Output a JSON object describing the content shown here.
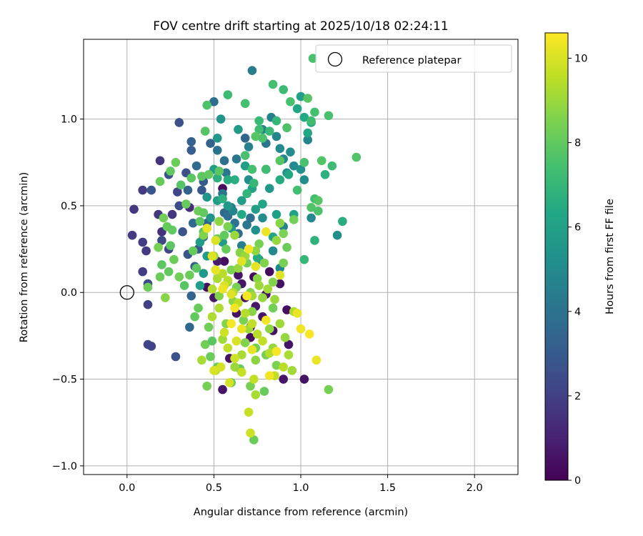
{
  "chart_data": {
    "type": "scatter",
    "title": "FOV centre drift starting at 2025/10/18 02:24:11",
    "xlabel": "Angular distance from reference (arcmin)",
    "ylabel": "Rotation from reference (arcmin)",
    "xlim": [
      -0.25,
      2.25
    ],
    "ylim": [
      -1.05,
      1.46
    ],
    "xticks": [
      0.0,
      0.5,
      1.0,
      1.5,
      2.0
    ],
    "xtick_labels": [
      "0.0",
      "0.5",
      "1.0",
      "1.5",
      "2.0"
    ],
    "yticks": [
      -1.0,
      -0.5,
      0.0,
      0.5,
      1.0
    ],
    "ytick_labels": [
      "−1.0",
      "−0.5",
      "0.0",
      "0.5",
      "1.0"
    ],
    "grid": true,
    "legend": {
      "position": "top-right",
      "entries": [
        "Reference platepar"
      ]
    },
    "reference_point": {
      "x": 0.0,
      "y": 0.0,
      "label": "Reference platepar"
    },
    "colorbar": {
      "label": "Hours from first FF file",
      "range": [
        0,
        10.6
      ],
      "ticks": [
        0,
        2,
        4,
        6,
        8,
        10
      ],
      "tick_labels": [
        "0",
        "2",
        "4",
        "6",
        "8",
        "10"
      ],
      "colormap": "viridis"
    },
    "points": [
      [
        0.55,
        0.6,
        0.3
      ],
      [
        0.73,
        0.09,
        0.3
      ],
      [
        0.56,
        0.18,
        0.4
      ],
      [
        0.82,
        0.12,
        0.3
      ],
      [
        0.92,
        -0.1,
        0.4
      ],
      [
        1.02,
        -0.5,
        0.5
      ],
      [
        0.55,
        -0.56,
        0.6
      ],
      [
        0.63,
        -0.12,
        0.5
      ],
      [
        0.5,
        -0.03,
        0.7
      ],
      [
        0.66,
        0.05,
        0.6
      ],
      [
        0.8,
        -0.01,
        0.5
      ],
      [
        0.46,
        0.03,
        0.4
      ],
      [
        0.71,
        -0.2,
        0.6
      ],
      [
        0.74,
        -0.08,
        0.7
      ],
      [
        0.93,
        -0.3,
        0.6
      ],
      [
        0.84,
        -0.22,
        0.5
      ],
      [
        0.78,
        -0.14,
        0.6
      ],
      [
        0.68,
        -0.03,
        0.5
      ],
      [
        0.9,
        -0.5,
        0.6
      ],
      [
        0.59,
        -0.38,
        0.5
      ],
      [
        0.52,
        0.18,
        0.8
      ],
      [
        0.88,
        0.05,
        0.5
      ],
      [
        0.64,
        0.1,
        0.6
      ],
      [
        0.71,
        -0.26,
        0.4
      ],
      [
        0.36,
        0.49,
        1.4
      ],
      [
        0.09,
        0.59,
        1.8
      ],
      [
        0.04,
        0.48,
        1.7
      ],
      [
        0.03,
        0.33,
        1.8
      ],
      [
        0.09,
        0.29,
        1.9
      ],
      [
        0.11,
        0.24,
        1.8
      ],
      [
        0.09,
        0.12,
        1.9
      ],
      [
        0.19,
        0.76,
        1.6
      ],
      [
        0.26,
        0.45,
        1.7
      ],
      [
        0.2,
        0.35,
        1.5
      ],
      [
        0.18,
        0.45,
        1.7
      ],
      [
        0.12,
        -0.07,
        2.0
      ],
      [
        0.12,
        -0.3,
        2.2
      ],
      [
        0.14,
        -0.31,
        2.1
      ],
      [
        0.28,
        -0.37,
        2.6
      ],
      [
        0.12,
        0.05,
        2.3
      ],
      [
        0.29,
        0.58,
        2.2
      ],
      [
        0.24,
        0.25,
        2.2
      ],
      [
        0.34,
        0.69,
        2.5
      ],
      [
        0.3,
        0.98,
        2.6
      ],
      [
        0.32,
        0.35,
        2.7
      ],
      [
        0.35,
        0.22,
        2.8
      ],
      [
        0.24,
        0.68,
        2.7
      ],
      [
        0.14,
        0.59,
        2.8
      ],
      [
        0.3,
        0.5,
        2.4
      ],
      [
        0.2,
        0.3,
        2.3
      ],
      [
        0.37,
        0.82,
        3.1
      ],
      [
        0.37,
        0.87,
        3.3
      ],
      [
        0.44,
        0.64,
        3.0
      ],
      [
        0.43,
        0.59,
        2.9
      ],
      [
        0.46,
        0.4,
        3.1
      ],
      [
        0.35,
        0.59,
        3.3
      ],
      [
        0.36,
        -0.2,
        3.6
      ],
      [
        0.37,
        -0.02,
        3.4
      ],
      [
        0.39,
        0.15,
        3.2
      ],
      [
        0.41,
        0.25,
        3.0
      ],
      [
        0.38,
        0.4,
        3.6
      ],
      [
        0.44,
        0.32,
        3.3
      ],
      [
        0.4,
        0.73,
        3.7
      ],
      [
        0.48,
        0.86,
        3.3
      ],
      [
        0.5,
        1.1,
        3.8
      ],
      [
        0.52,
        0.82,
        4.0
      ],
      [
        0.55,
        0.57,
        4.2
      ],
      [
        0.56,
        0.46,
        3.6
      ],
      [
        0.57,
        0.69,
        4.1
      ],
      [
        0.58,
        0.44,
        3.8
      ],
      [
        0.6,
        0.49,
        4.4
      ],
      [
        0.62,
        0.4,
        4.0
      ],
      [
        0.64,
        0.34,
        3.7
      ],
      [
        0.66,
        0.27,
        4.5
      ],
      [
        0.68,
        0.89,
        3.5
      ],
      [
        0.69,
        0.39,
        4.2
      ],
      [
        0.71,
        0.43,
        3.9
      ],
      [
        0.61,
        0.47,
        4.8
      ],
      [
        0.56,
        0.76,
        3.9
      ],
      [
        0.63,
        0.77,
        4.2
      ],
      [
        0.7,
        0.84,
        4.6
      ],
      [
        0.72,
        1.28,
        4.4
      ],
      [
        0.78,
        0.94,
        4.8
      ],
      [
        0.8,
        0.86,
        4.1
      ],
      [
        0.83,
        1.01,
        4.6
      ],
      [
        0.86,
        0.9,
        4.8
      ],
      [
        0.88,
        0.83,
        5.0
      ],
      [
        0.9,
        0.77,
        4.9
      ],
      [
        0.92,
        0.69,
        5.2
      ],
      [
        0.94,
        0.81,
        5.1
      ],
      [
        0.96,
        0.73,
        5.0
      ],
      [
        1.0,
        0.71,
        5.3
      ],
      [
        1.02,
        0.65,
        5.1
      ],
      [
        1.04,
        0.88,
        4.8
      ],
      [
        1.06,
        0.43,
        5.0
      ],
      [
        1.21,
        0.33,
        5.2
      ],
      [
        0.9,
        0.38,
        4.7
      ],
      [
        0.88,
        0.14,
        4.8
      ],
      [
        0.84,
        0.24,
        5.0
      ],
      [
        0.76,
        0.19,
        4.9
      ],
      [
        0.74,
        0.36,
        5.3
      ],
      [
        0.78,
        0.43,
        5.1
      ],
      [
        0.8,
        0.71,
        5.4
      ],
      [
        0.82,
        0.6,
        5.6
      ],
      [
        0.7,
        0.65,
        5.2
      ],
      [
        0.66,
        0.53,
        5.8
      ],
      [
        0.6,
        0.37,
        5.4
      ],
      [
        0.58,
        0.5,
        5.6
      ],
      [
        0.55,
        0.29,
        5.7
      ],
      [
        0.52,
        0.53,
        5.9
      ],
      [
        0.48,
        0.43,
        5.4
      ],
      [
        0.46,
        0.21,
        5.8
      ],
      [
        0.44,
        0.11,
        5.6
      ],
      [
        0.42,
        0.04,
        6.0
      ],
      [
        0.42,
        0.29,
        5.8
      ],
      [
        0.46,
        0.55,
        5.5
      ],
      [
        0.5,
        0.71,
        5.9
      ],
      [
        0.52,
        0.89,
        5.6
      ],
      [
        0.54,
        1.0,
        5.5
      ],
      [
        0.64,
        0.94,
        5.7
      ],
      [
        0.68,
        0.73,
        5.9
      ],
      [
        0.72,
        0.6,
        6.1
      ],
      [
        0.74,
        0.48,
        5.9
      ],
      [
        0.78,
        0.51,
        6.2
      ],
      [
        0.86,
        0.45,
        6.0
      ],
      [
        0.96,
        0.45,
        6.1
      ],
      [
        0.98,
        1.06,
        6.3
      ],
      [
        1.0,
        1.13,
        6.0
      ],
      [
        1.02,
        1.01,
        6.4
      ],
      [
        1.04,
        0.92,
        6.3
      ],
      [
        1.06,
        0.98,
        6.4
      ],
      [
        0.93,
        0.68,
        6.3
      ],
      [
        0.88,
        0.65,
        6.5
      ],
      [
        0.84,
        0.32,
        6.2
      ],
      [
        0.75,
        0.2,
        6.5
      ],
      [
        0.66,
        0.45,
        6.4
      ],
      [
        0.62,
        0.65,
        6.6
      ],
      [
        0.58,
        0.65,
        6.5
      ],
      [
        0.52,
        0.66,
        6.7
      ],
      [
        0.55,
        0.54,
        6.7
      ],
      [
        0.69,
        0.57,
        6.9
      ],
      [
        0.73,
        0.63,
        7.0
      ],
      [
        1.14,
        0.68,
        6.7
      ],
      [
        1.08,
        0.3,
        6.8
      ],
      [
        1.24,
        0.41,
        6.6
      ],
      [
        1.18,
        0.73,
        7.2
      ],
      [
        1.02,
        0.19,
        7.0
      ],
      [
        0.82,
        0.93,
        7.1
      ],
      [
        0.86,
        0.99,
        7.0
      ],
      [
        0.9,
        1.17,
        7.2
      ],
      [
        0.84,
        1.2,
        7.4
      ],
      [
        0.76,
        0.99,
        7.1
      ],
      [
        0.76,
        0.94,
        7.3
      ],
      [
        0.68,
        1.09,
        7.4
      ],
      [
        0.58,
        1.14,
        7.2
      ],
      [
        0.68,
        0.79,
        7.5
      ],
      [
        0.72,
        0.71,
        7.4
      ],
      [
        0.74,
        0.9,
        7.8
      ],
      [
        0.78,
        0.89,
        7.6
      ],
      [
        0.8,
        0.71,
        7.3
      ],
      [
        0.88,
        0.76,
        7.8
      ],
      [
        0.92,
        0.95,
        7.6
      ],
      [
        0.94,
        1.1,
        7.5
      ],
      [
        0.98,
        0.59,
        7.4
      ],
      [
        1.02,
        0.75,
        7.5
      ],
      [
        1.06,
        0.49,
        7.7
      ],
      [
        1.08,
        0.54,
        7.4
      ],
      [
        1.1,
        0.47,
        7.6
      ],
      [
        1.12,
        0.76,
        7.7
      ],
      [
        1.16,
        1.02,
        7.5
      ],
      [
        1.04,
        1.12,
        7.8
      ],
      [
        1.08,
        1.04,
        7.4
      ],
      [
        1.06,
        0.99,
        7.3
      ],
      [
        1.1,
        0.53,
        7.8
      ],
      [
        1.32,
        0.78,
        7.7
      ],
      [
        1.07,
        1.35,
        7.5
      ],
      [
        0.46,
        1.08,
        7.6
      ],
      [
        0.45,
        0.93,
        7.8
      ],
      [
        0.43,
        0.67,
        7.9
      ],
      [
        0.47,
        0.68,
        8.0
      ],
      [
        0.53,
        0.7,
        7.9
      ],
      [
        0.56,
        0.33,
        8.0
      ],
      [
        0.52,
        0.31,
        8.2
      ],
      [
        0.57,
        0.25,
        8.1
      ],
      [
        0.44,
        0.35,
        7.8
      ],
      [
        0.42,
        0.41,
        7.9
      ],
      [
        0.34,
        0.51,
        8.1
      ],
      [
        0.31,
        0.62,
        7.8
      ],
      [
        0.25,
        0.7,
        8.0
      ],
      [
        0.19,
        0.64,
        8.1
      ],
      [
        0.28,
        0.75,
        8.2
      ],
      [
        0.37,
        0.66,
        7.9
      ],
      [
        0.41,
        0.47,
        8.2
      ],
      [
        0.44,
        0.46,
        8.0
      ],
      [
        0.4,
        0.14,
        7.9
      ],
      [
        0.38,
        0.24,
        8.1
      ],
      [
        0.36,
        0.1,
        8.2
      ],
      [
        0.33,
        0.04,
        7.8
      ],
      [
        0.3,
        0.09,
        8.3
      ],
      [
        0.27,
        0.19,
        8.2
      ],
      [
        0.24,
        0.12,
        8.0
      ],
      [
        0.2,
        0.16,
        7.9
      ],
      [
        0.19,
        0.09,
        8.2
      ],
      [
        0.23,
        0.38,
        8.1
      ],
      [
        0.26,
        0.36,
        8.0
      ],
      [
        0.21,
        0.43,
        8.3
      ],
      [
        0.18,
        0.26,
        8.4
      ],
      [
        0.12,
        0.03,
        8.2
      ],
      [
        0.25,
        0.27,
        7.9
      ],
      [
        0.48,
        -0.37,
        8.2
      ],
      [
        0.45,
        -0.3,
        8.3
      ],
      [
        0.39,
        -0.14,
        8.0
      ],
      [
        0.41,
        -0.09,
        8.1
      ],
      [
        0.47,
        -0.2,
        8.3
      ],
      [
        0.49,
        -0.28,
        7.9
      ],
      [
        0.52,
        -0.43,
        8.2
      ],
      [
        0.6,
        -0.52,
        8.0
      ],
      [
        0.65,
        -0.44,
        8.1
      ],
      [
        0.71,
        -0.54,
        8.4
      ],
      [
        0.73,
        -0.85,
        8.2
      ],
      [
        0.79,
        -0.57,
        8.1
      ],
      [
        0.74,
        -0.32,
        8.3
      ],
      [
        0.67,
        -0.16,
        8.5
      ],
      [
        0.8,
        -0.36,
        8.4
      ],
      [
        0.84,
        -0.09,
        8.3
      ],
      [
        0.86,
        -0.42,
        8.5
      ],
      [
        0.9,
        0.17,
        8.4
      ],
      [
        0.92,
        0.26,
        8.2
      ],
      [
        0.96,
        0.42,
        8.3
      ],
      [
        1.16,
        -0.56,
        8.4
      ],
      [
        0.84,
        0.06,
        8.6
      ],
      [
        0.9,
        0.34,
        8.5
      ],
      [
        0.76,
        0.28,
        8.4
      ],
      [
        0.69,
        0.17,
        8.3
      ],
      [
        0.71,
        0.0,
        8.6
      ],
      [
        0.63,
        0.03,
        8.4
      ],
      [
        0.6,
        0.13,
        8.5
      ],
      [
        0.57,
        -0.18,
        8.7
      ],
      [
        0.53,
        -0.02,
        8.6
      ],
      [
        0.46,
        -0.54,
        8.4
      ],
      [
        0.44,
        0.33,
        8.6
      ],
      [
        0.22,
        -0.03,
        8.7
      ],
      [
        0.61,
        -0.05,
        8.8
      ],
      [
        0.65,
        0.23,
        8.7
      ],
      [
        0.68,
        -0.29,
        8.6
      ],
      [
        0.72,
        -0.11,
        8.7
      ],
      [
        0.74,
        -0.39,
        8.8
      ],
      [
        0.78,
        -0.03,
        8.9
      ],
      [
        0.75,
        0.08,
        8.7
      ],
      [
        0.58,
        0.06,
        8.8
      ],
      [
        0.5,
        0.21,
        8.9
      ],
      [
        0.53,
        0.41,
        8.8
      ],
      [
        0.58,
        0.38,
        8.5
      ],
      [
        0.82,
        -0.21,
        8.8
      ],
      [
        0.86,
        0.3,
        8.9
      ],
      [
        0.88,
        0.4,
        8.7
      ],
      [
        0.84,
        -0.32,
        8.9
      ],
      [
        0.79,
        0.17,
        8.6
      ],
      [
        0.74,
        0.24,
        8.8
      ],
      [
        0.68,
        0.21,
        9.0
      ],
      [
        0.64,
        0.14,
        8.9
      ],
      [
        0.62,
        0.33,
        9.0
      ],
      [
        0.72,
        -0.02,
        9.1
      ],
      [
        0.76,
        0.04,
        9.0
      ],
      [
        0.81,
        0.02,
        9.1
      ],
      [
        0.85,
        -0.04,
        9.0
      ],
      [
        0.88,
        -0.18,
        9.1
      ],
      [
        0.91,
        -0.26,
        8.9
      ],
      [
        0.93,
        -0.36,
        9.2
      ],
      [
        0.95,
        -0.45,
        9.1
      ],
      [
        0.96,
        -0.11,
        9.3
      ],
      [
        0.7,
        -0.21,
        9.1
      ],
      [
        0.66,
        -0.36,
        9.2
      ],
      [
        0.62,
        -0.43,
        9.0
      ],
      [
        0.55,
        -0.27,
        9.1
      ],
      [
        0.49,
        -0.14,
        9.3
      ],
      [
        0.43,
        -0.39,
        9.2
      ],
      [
        0.51,
        -0.45,
        9.4
      ],
      [
        0.74,
        -0.59,
        9.2
      ],
      [
        0.53,
        -0.09,
        9.3
      ],
      [
        0.49,
        0.02,
        9.4
      ],
      [
        0.52,
        0.08,
        9.2
      ],
      [
        0.55,
        0.11,
        9.5
      ],
      [
        0.58,
        0.07,
        9.4
      ],
      [
        0.61,
        0.0,
        9.3
      ],
      [
        0.64,
        -0.06,
        9.5
      ],
      [
        0.68,
        -0.12,
        9.4
      ],
      [
        0.72,
        -0.18,
        9.6
      ],
      [
        0.75,
        -0.24,
        9.5
      ],
      [
        0.78,
        -0.28,
        9.6
      ],
      [
        0.82,
        -0.35,
        9.4
      ],
      [
        0.85,
        -0.48,
        9.6
      ],
      [
        0.9,
        -0.43,
        9.5
      ],
      [
        0.73,
        -0.5,
        9.6
      ],
      [
        0.7,
        -0.69,
        9.7
      ],
      [
        0.71,
        -0.81,
        9.8
      ],
      [
        0.66,
        -0.46,
        9.7
      ],
      [
        0.62,
        -0.38,
        9.8
      ],
      [
        0.58,
        -0.32,
        9.6
      ],
      [
        0.56,
        -0.23,
        9.8
      ],
      [
        0.54,
        -0.43,
        9.9
      ],
      [
        0.5,
        -0.45,
        10.0
      ],
      [
        0.59,
        -0.52,
        9.9
      ],
      [
        0.63,
        -0.28,
        10.0
      ],
      [
        0.6,
        -0.01,
        10.1
      ],
      [
        0.56,
        0.04,
        10.0
      ],
      [
        0.51,
        0.13,
        10.2
      ],
      [
        0.49,
        0.21,
        10.1
      ],
      [
        0.51,
        0.3,
        10.0
      ],
      [
        0.46,
        0.37,
        10.2
      ],
      [
        0.55,
        0.02,
        10.3
      ],
      [
        0.66,
        0.18,
        10.1
      ],
      [
        0.7,
        0.25,
        10.4
      ],
      [
        0.74,
        0.15,
        10.2
      ],
      [
        0.8,
        0.35,
        10.3
      ],
      [
        0.88,
        0.1,
        10.1
      ],
      [
        0.82,
        -0.48,
        10.4
      ],
      [
        0.72,
        -0.33,
        10.2
      ],
      [
        0.66,
        -0.21,
        10.3
      ],
      [
        0.6,
        -0.18,
        10.5
      ],
      [
        0.8,
        -0.16,
        10.4
      ],
      [
        0.98,
        -0.12,
        10.3
      ],
      [
        1.0,
        -0.21,
        10.4
      ],
      [
        1.05,
        -0.24,
        10.5
      ],
      [
        1.09,
        -0.39,
        10.3
      ],
      [
        0.86,
        -0.34,
        10.5
      ],
      [
        0.62,
        -0.09,
        10.4
      ],
      [
        0.69,
        -0.02,
        10.5
      ]
    ]
  }
}
